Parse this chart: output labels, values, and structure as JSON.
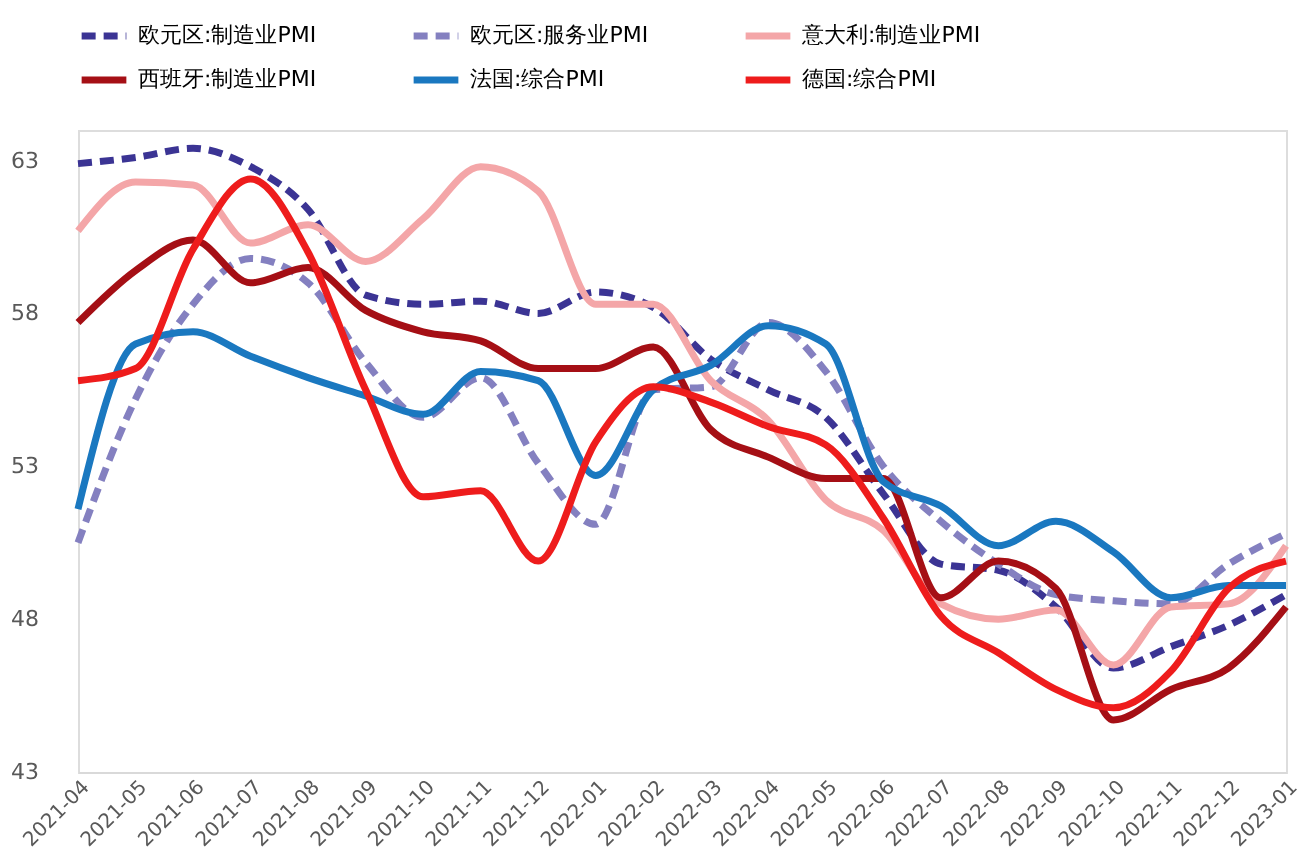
{
  "chart_data": {
    "type": "line",
    "categories": [
      "2021-04",
      "2021-05",
      "2021-06",
      "2021-07",
      "2021-08",
      "2021-09",
      "2021-10",
      "2021-11",
      "2021-12",
      "2022-01",
      "2022-02",
      "2022-03",
      "2022-04",
      "2022-05",
      "2022-06",
      "2022-07",
      "2022-08",
      "2022-09",
      "2022-10",
      "2022-11",
      "2022-12",
      "2023-01"
    ],
    "series": [
      {
        "name": "欧元区:制造业PMI",
        "color": "#3b3494",
        "line_style": "dashed",
        "values": [
          62.9,
          63.1,
          63.4,
          62.8,
          61.4,
          58.6,
          58.3,
          58.4,
          58.0,
          58.7,
          58.2,
          56.5,
          55.5,
          54.6,
          52.1,
          49.8,
          49.6,
          48.4,
          46.4,
          47.1,
          47.8,
          48.8
        ]
      },
      {
        "name": "欧元区:服务业PMI",
        "color": "#8480c0",
        "line_style": "dashed",
        "values": [
          50.5,
          55.2,
          58.3,
          59.8,
          59.0,
          56.4,
          54.6,
          55.9,
          53.1,
          51.1,
          55.5,
          55.6,
          57.7,
          56.1,
          53.0,
          51.2,
          49.8,
          48.8,
          48.6,
          48.5,
          49.8,
          50.8
        ]
      },
      {
        "name": "意大利:制造业PMI",
        "color": "#f4a6a8",
        "line_style": "solid",
        "values": [
          60.7,
          62.3,
          62.2,
          60.3,
          60.9,
          59.7,
          61.1,
          62.8,
          62.0,
          58.3,
          58.3,
          55.8,
          54.5,
          51.9,
          50.9,
          48.5,
          48.0,
          48.3,
          46.5,
          48.4,
          48.5,
          50.4
        ]
      },
      {
        "name": "西班牙:制造业PMI",
        "color": "#a50f15",
        "line_style": "solid",
        "values": [
          57.7,
          59.4,
          60.4,
          59.0,
          59.5,
          58.1,
          57.4,
          57.1,
          56.2,
          56.2,
          56.9,
          54.2,
          53.3,
          52.6,
          52.6,
          48.7,
          49.9,
          49.0,
          44.7,
          45.7,
          46.4,
          48.4
        ]
      },
      {
        "name": "法国:综合PMI",
        "color": "#1a78c0",
        "line_style": "solid",
        "values": [
          51.6,
          57.0,
          57.4,
          56.6,
          55.9,
          55.3,
          54.7,
          56.1,
          55.8,
          52.7,
          55.5,
          56.3,
          57.6,
          57.0,
          52.5,
          51.7,
          50.4,
          51.2,
          50.2,
          48.7,
          49.1,
          49.1
        ]
      },
      {
        "name": "德国:综合PMI",
        "color": "#ee1c1c",
        "line_style": "solid",
        "values": [
          55.8,
          56.2,
          60.1,
          62.4,
          60.0,
          55.5,
          52.0,
          52.2,
          49.9,
          53.8,
          55.6,
          55.1,
          54.3,
          53.7,
          51.3,
          48.1,
          46.9,
          45.7,
          45.1,
          46.3,
          49.0,
          49.9
        ]
      }
    ],
    "ylim": [
      43,
      64
    ],
    "yticks": [
      43,
      48,
      53,
      58,
      63
    ],
    "grid": false,
    "legend": "top",
    "marker": "none"
  }
}
